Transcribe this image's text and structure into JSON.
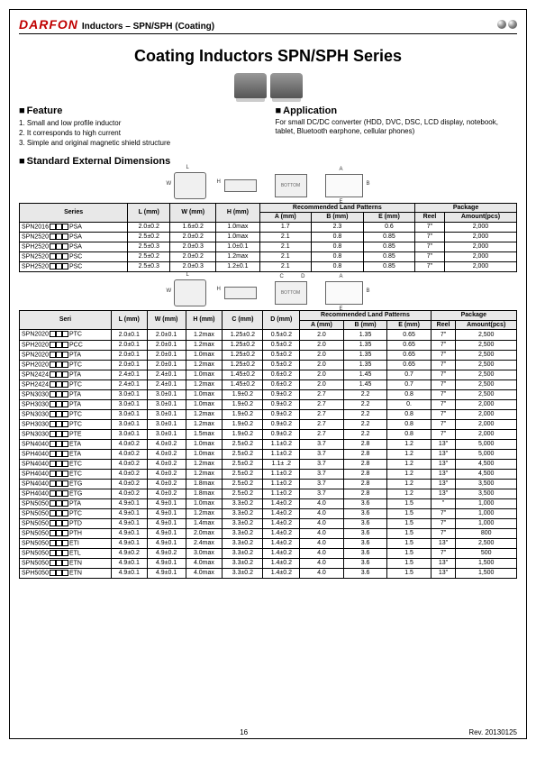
{
  "header": {
    "logo": "DARFON",
    "title": "Inductors – SPN/SPH (Coating)"
  },
  "mainTitle": "Coating Inductors SPN/SPH Series",
  "feature": {
    "heading": "Feature",
    "items": [
      "1. Small and low profile inductor",
      "2. It corresponds to high current",
      "3. Simple and original magnetic shield structure"
    ]
  },
  "application": {
    "heading": "Application",
    "text": "For small DC/DC converter (HDD, DVC, DSC, LCD display, notebook, tablet, Bluetooth earphone, cellular phones)"
  },
  "dimensionsHeading": "Standard External Dimensions",
  "diagramLabels": {
    "L": "L",
    "W": "W",
    "H": "H",
    "A": "A",
    "B": "B",
    "E": "E",
    "C": "C",
    "D": "D",
    "bottom": "BOTTOM"
  },
  "table1": {
    "headers": {
      "series": "Series",
      "L": "L\n(mm)",
      "W": "W\n(mm)",
      "H": "H\n(mm)",
      "recommended": "Recommended Land Patterns",
      "A": "A\n(mm)",
      "B": "B\n(mm)",
      "E": "E\n(mm)",
      "package": "Package",
      "reel": "Reel",
      "amount": "Amount(pcs)"
    },
    "rows": [
      {
        "series": "SPN2016",
        "suffix": "PSA",
        "L": "2.0±0.2",
        "W": "1.6±0.2",
        "H": "1.0max",
        "A": "1.7",
        "B": "2.3",
        "E": "0.6",
        "reel": "7\"",
        "amount": "2,000"
      },
      {
        "series": "SPN2520",
        "suffix": "PSA",
        "L": "2.5±0.2",
        "W": "2.0±0.2",
        "H": "1.0max",
        "A": "2.1",
        "B": "0.8",
        "E": "0.85",
        "reel": "7\"",
        "amount": "2,000"
      },
      {
        "series": "SPH2520",
        "suffix": "PSA",
        "L": "2.5±0.3",
        "W": "2.0±0.3",
        "H": "1.0±0.1",
        "A": "2.1",
        "B": "0.8",
        "E": "0.85",
        "reel": "7\"",
        "amount": "2,000"
      },
      {
        "series": "SPN2520",
        "suffix": "PSC",
        "L": "2.5±0.2",
        "W": "2.0±0.2",
        "H": "1.2max",
        "A": "2.1",
        "B": "0.8",
        "E": "0.85",
        "reel": "7\"",
        "amount": "2,000"
      },
      {
        "series": "SPH2520",
        "suffix": "PSC",
        "L": "2.5±0.3",
        "W": "2.0±0.3",
        "H": "1.2±0.1",
        "A": "2.1",
        "B": "0.8",
        "E": "0.85",
        "reel": "7\"",
        "amount": "2,000"
      }
    ]
  },
  "table2": {
    "headers": {
      "seri": "Seri",
      "L": "L\n(mm)",
      "W": "W\n(mm)",
      "H": "H\n(mm)",
      "C": "C\n(mm)",
      "D": "D\n(mm)",
      "recommended": "Recommended Land\nPatterns",
      "A": "A\n(mm)",
      "B": "B\n(mm)",
      "E": "E\n(mm)",
      "package": "Package",
      "reel": "Reel",
      "amount": "Amount(pcs)"
    },
    "rows": [
      {
        "s": "SPN2020",
        "sf": "PTC",
        "L": "2.0±0.1",
        "W": "2.0±0.1",
        "H": "1.2max",
        "C": "1.25±0.2",
        "D": "0.5±0.2",
        "A": "2.0",
        "B": "1.35",
        "E": "0.65",
        "r": "7\"",
        "a": "2,500"
      },
      {
        "s": "SPH2020",
        "sf": "PCC",
        "L": "2.0±0.1",
        "W": "2.0±0.1",
        "H": "1.2max",
        "C": "1.25±0.2",
        "D": "0.5±0.2",
        "A": "2.0",
        "B": "1.35",
        "E": "0.65",
        "r": "7\"",
        "a": "2,500"
      },
      {
        "s": "SPN2020",
        "sf": "PTA",
        "L": "2.0±0.1",
        "W": "2.0±0.1",
        "H": "1.0max",
        "C": "1.25±0.2",
        "D": "0.5±0.2",
        "A": "2.0",
        "B": "1.35",
        "E": "0.65",
        "r": "7\"",
        "a": "2,500"
      },
      {
        "s": "SPH2020",
        "sf": "PTC",
        "L": "2.0±0.1",
        "W": "2.0±0.1",
        "H": "1.2max",
        "C": "1.25±0.2",
        "D": "0.5±0.2",
        "A": "2.0",
        "B": "1.35",
        "E": "0.65",
        "r": "7\"",
        "a": "2,500"
      },
      {
        "s": "SPN2424",
        "sf": "PTA",
        "L": "2.4±0.1",
        "W": "2.4±0.1",
        "H": "1.0max",
        "C": "1.45±0.2",
        "D": "0.6±0.2",
        "A": "2.0",
        "B": "1.45",
        "E": "0.7",
        "r": "7\"",
        "a": "2,500"
      },
      {
        "s": "SPH2424",
        "sf": "PTC",
        "L": "2.4±0.1",
        "W": "2.4±0.1",
        "H": "1.2max",
        "C": "1.45±0.2",
        "D": "0.6±0.2",
        "A": "2.0",
        "B": "1.45",
        "E": "0.7",
        "r": "7\"",
        "a": "2,500"
      },
      {
        "s": "SPN3030",
        "sf": "PTA",
        "L": "3.0±0.1",
        "W": "3.0±0.1",
        "H": "1.0max",
        "C": "1.9±0.2",
        "D": "0.9±0.2",
        "A": "2.7",
        "B": "2.2",
        "E": "0.8",
        "r": "7\"",
        "a": "2,500"
      },
      {
        "s": "SPH3030",
        "sf": "PTA",
        "L": "3.0±0.1",
        "W": "3.0±0.1",
        "H": "1.0max",
        "C": "1.9±0.2",
        "D": "0.9±0.2",
        "A": "2.7",
        "B": "2.2",
        "E": "0.",
        "r": "7\"",
        "a": "2,000"
      },
      {
        "s": "SPN3030",
        "sf": "PTC",
        "L": "3.0±0.1",
        "W": "3.0±0.1",
        "H": "1.2max",
        "C": "1.9±0.2",
        "D": "0.9±0.2",
        "A": "2.7",
        "B": "2.2",
        "E": "0.8",
        "r": "7\"",
        "a": "2,000"
      },
      {
        "s": "SPH3030",
        "sf": "PTC",
        "L": "3.0±0.1",
        "W": "3.0±0.1",
        "H": "1.2max",
        "C": "1.9±0.2",
        "D": "0.9±0.2",
        "A": "2.7",
        "B": "2.2",
        "E": "0.8",
        "r": "7\"",
        "a": "2,000"
      },
      {
        "s": "SPN3030",
        "sf": "PTE",
        "L": "3.0±0.1",
        "W": "3.0±0.1",
        "H": "1.5max",
        "C": "1.9±0.2",
        "D": "0.9±0.2",
        "A": "2.7",
        "B": "2.2",
        "E": "0.8",
        "r": "7\"",
        "a": "2,000"
      },
      {
        "s": "SPN4040",
        "sf": "ETA",
        "L": "4.0±0.2",
        "W": "4.0±0.2",
        "H": "1.0max",
        "C": "2.5±0.2",
        "D": "1.1±0.2",
        "A": "3.7",
        "B": "2.8",
        "E": "1.2",
        "r": "13\"",
        "a": "5,000"
      },
      {
        "s": "SPH4040",
        "sf": "ETA",
        "L": "4.0±0.2",
        "W": "4.0±0.2",
        "H": "1.0max",
        "C": "2.5±0.2",
        "D": "1.1±0.2",
        "A": "3.7",
        "B": "2.8",
        "E": "1.2",
        "r": "13\"",
        "a": "5,000"
      },
      {
        "s": "SPN4040",
        "sf": "ETC",
        "L": "4.0±0.2",
        "W": "4.0±0.2",
        "H": "1.2max",
        "C": "2.5±0.2",
        "D": "1.1± .2",
        "A": "3.7",
        "B": "2.8",
        "E": "1.2",
        "r": "13\"",
        "a": "4,500"
      },
      {
        "s": "SPH4040",
        "sf": "ETC",
        "L": "4.0±0.2",
        "W": "4.0±0.2",
        "H": "1.2max",
        "C": "2.5±0.2",
        "D": "1.1±0.2",
        "A": "3.7",
        "B": "2.8",
        "E": "1.2",
        "r": "13\"",
        "a": "4,500"
      },
      {
        "s": "SPN4040",
        "sf": "ETG",
        "L": "4.0±0.2",
        "W": "4.0±0.2",
        "H": "1.8max",
        "C": "2.5±0.2",
        "D": "1.1±0.2",
        "A": "3.7",
        "B": "2.8",
        "E": "1.2",
        "r": "13\"",
        "a": "3,500"
      },
      {
        "s": "SPH4040",
        "sf": "ETG",
        "L": "4.0±0.2",
        "W": "4.0±0.2",
        "H": "1.8max",
        "C": "2.5±0.2",
        "D": "1.1±0.2",
        "A": "3.7",
        "B": "2.8",
        "E": "1.2",
        "r": "13\"",
        "a": "3,500"
      },
      {
        "s": "SPN5050",
        "sf": "PTA",
        "L": "4.9±0.1",
        "W": "4.9±0.1",
        "H": "1.0max",
        "C": "3.3±0.2",
        "D": "1.4±0.2",
        "A": "4.0",
        "B": "3.6",
        "E": "1.5",
        "r": "\"",
        "a": "1,000"
      },
      {
        "s": "SPN5050",
        "sf": "PTC",
        "L": "4.9±0.1",
        "W": "4.9±0.1",
        "H": "1.2max",
        "C": "3.3±0.2",
        "D": "1.4±0.2",
        "A": "4.0",
        "B": "3.6",
        "E": "1.5",
        "r": "7\"",
        "a": "1,000"
      },
      {
        "s": "SPN5050",
        "sf": "PTD",
        "L": "4.9±0.1",
        "W": "4.9±0.1",
        "H": "1.4max",
        "C": "3.3±0.2",
        "D": "1.4±0.2",
        "A": "4.0",
        "B": "3.6",
        "E": "1.5",
        "r": "7\"",
        "a": "1,000"
      },
      {
        "s": "SPN5050",
        "sf": "PTH",
        "L": "4.9±0.1",
        "W": "4.9±0.1",
        "H": "2.0max",
        "C": "3.3±0.2",
        "D": "1.4±0.2",
        "A": "4.0",
        "B": "3.6",
        "E": "1.5",
        "r": "7\"",
        "a": "800"
      },
      {
        "s": "SPN5050",
        "sf": "ETI",
        "L": "4.9±0.1",
        "W": "4.9±0.1",
        "H": "2.4max",
        "C": "3.3±0.2",
        "D": "1.4±0.2",
        "A": "4.0",
        "B": "3.6",
        "E": "1.5",
        "r": "13\"",
        "a": "2,500"
      },
      {
        "s": "SPN5050",
        "sf": "ETL",
        "L": "4.9±0.2",
        "W": "4.9±0.2",
        "H": "3.0max",
        "C": "3.3±0.2",
        "D": "1.4±0.2",
        "A": "4.0",
        "B": "3.6",
        "E": "1.5",
        "r": "7\"",
        "a": "500"
      },
      {
        "s": "SPN5050",
        "sf": "ETN",
        "L": "4.9±0.1",
        "W": "4.9±0.1",
        "H": "4.0max",
        "C": "3.3±0.2",
        "D": "1.4±0.2",
        "A": "4.0",
        "B": "3.6",
        "E": "1.5",
        "r": "13\"",
        "a": "1,500"
      },
      {
        "s": "SPH5050",
        "sf": "ETN",
        "L": "4.9±0.1",
        "W": "4.9±0.1",
        "H": "4.0max",
        "C": "3.3±0.2",
        "D": "1.4±0.2",
        "A": "4.0",
        "B": "3.6",
        "E": "1.5",
        "r": "13\"",
        "a": "1,500"
      }
    ]
  },
  "footer": {
    "page": "16",
    "rev": "Rev. 20130125"
  }
}
